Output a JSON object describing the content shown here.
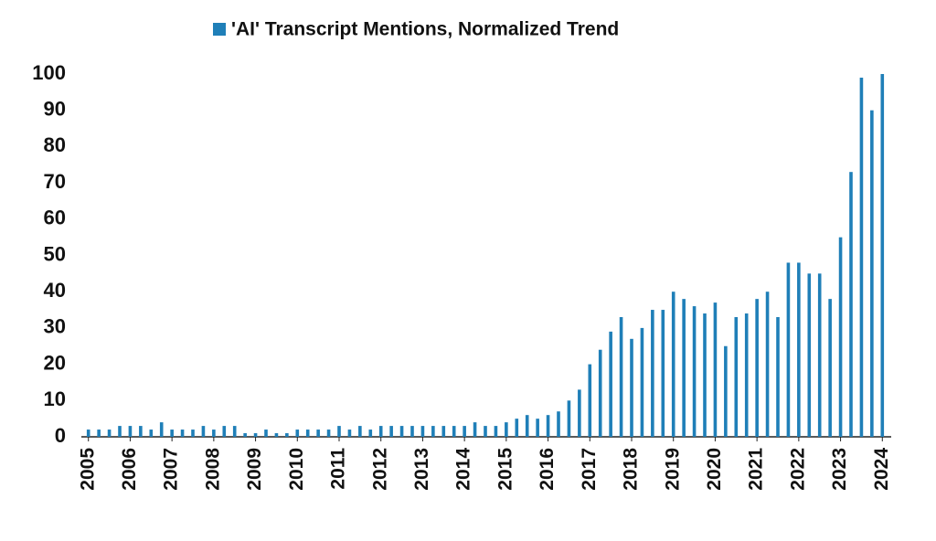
{
  "chart_data": {
    "type": "bar",
    "categories": [
      "2005",
      null,
      null,
      null,
      "2006",
      null,
      null,
      null,
      "2007",
      null,
      null,
      null,
      "2008",
      null,
      null,
      null,
      "2009",
      null,
      null,
      null,
      "2010",
      null,
      null,
      null,
      "2011",
      null,
      null,
      null,
      "2012",
      null,
      null,
      null,
      "2013",
      null,
      null,
      null,
      "2014",
      null,
      null,
      null,
      "2015",
      null,
      null,
      null,
      "2016",
      null,
      null,
      null,
      "2017",
      null,
      null,
      null,
      "2018",
      null,
      null,
      null,
      "2019",
      null,
      null,
      null,
      "2020",
      null,
      null,
      null,
      "2021",
      null,
      null,
      null,
      "2022",
      null,
      null,
      null,
      "2023",
      null,
      null,
      null,
      "2024"
    ],
    "series": [
      {
        "name": "'AI' Transcript Mentions, Normalized Trend",
        "color": "#1f7fb8",
        "values": [
          2,
          2,
          2,
          3,
          3,
          3,
          2,
          4,
          2,
          2,
          2,
          3,
          2,
          3,
          3,
          1,
          1,
          2,
          1,
          1,
          2,
          2,
          2,
          2,
          3,
          2,
          3,
          2,
          3,
          3,
          3,
          3,
          3,
          3,
          3,
          3,
          3,
          4,
          3,
          3,
          4,
          5,
          6,
          5,
          6,
          7,
          10,
          13,
          20,
          24,
          29,
          33,
          27,
          30,
          35,
          35,
          40,
          38,
          36,
          34,
          37,
          25,
          33,
          34,
          38,
          40,
          33,
          48,
          48,
          45,
          45,
          38,
          55,
          73,
          99,
          90,
          100
        ]
      }
    ],
    "ylim": [
      0,
      100
    ],
    "yticks": [
      0,
      10,
      20,
      30,
      40,
      50,
      60,
      70,
      80,
      90,
      100
    ],
    "grid": false,
    "legend": "top"
  }
}
